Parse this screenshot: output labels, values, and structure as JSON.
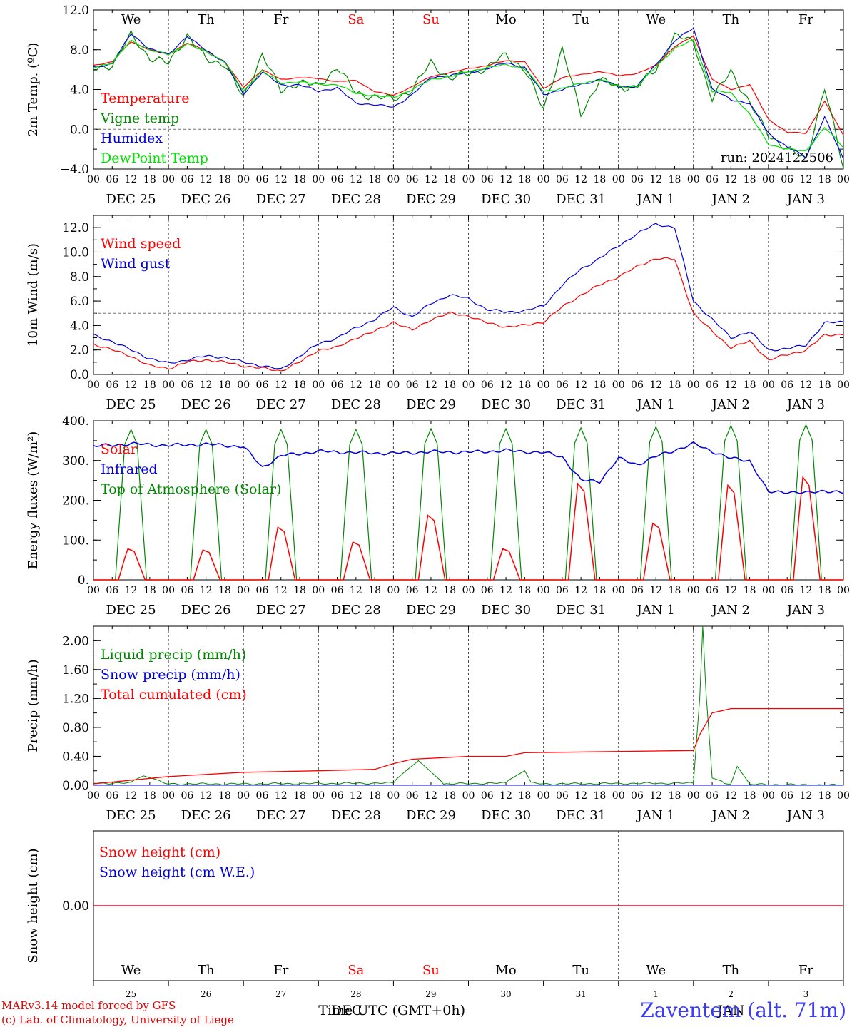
{
  "colors": {
    "red": "#ff0000",
    "green": "#008800",
    "blue": "#0000dd",
    "lightgreen": "#00e000",
    "axis": "#000000",
    "weekend": "#ff0000"
  },
  "day_labels": [
    "We",
    "Th",
    "Fr",
    "Sa",
    "Su",
    "Mo",
    "Tu",
    "We",
    "Th",
    "Fr"
  ],
  "weekend_days": [
    "Sa",
    "Su"
  ],
  "hour_ticks": [
    "00",
    "06",
    "12",
    "18"
  ],
  "date_labels": [
    "DEC 25",
    "DEC 26",
    "DEC 27",
    "DEC 28",
    "DEC 29",
    "DEC 30",
    "DEC 31",
    "JAN 1",
    "JAN 2",
    "JAN 3"
  ],
  "bottom_day_numbers": [
    "25",
    "26",
    "27",
    "28",
    "29",
    "30",
    "31",
    "1",
    "2",
    "3"
  ],
  "run_label": "run: 2024122506",
  "xlabel": "Time UTC (GMT+0h)",
  "bottom_month_left": "DEC",
  "bottom_month_right": "JAN",
  "station": "Zaventem (alt. 71m)",
  "credit_line1": "MARv3.14 model forced by GFS",
  "credit_line2": "(c) Lab. of Climatology, University of Liege",
  "chart_data": [
    {
      "type": "line",
      "ylabel": "2m Temp. (ºC)",
      "ylim": [
        -4,
        12
      ],
      "yticks": [
        "12.0",
        "8.0",
        "4.0",
        "0.0",
        "−4.0"
      ],
      "ytick_values": [
        12,
        8,
        4,
        0,
        -4
      ],
      "dashed_reference": 0,
      "x_hours": [
        0,
        6,
        12,
        18,
        24,
        30,
        36,
        42,
        48,
        54,
        60,
        66,
        72,
        78,
        84,
        90,
        96,
        102,
        108,
        114,
        120,
        126,
        132,
        138,
        144,
        150,
        156,
        162,
        168,
        174,
        180,
        186,
        192,
        198,
        204,
        210,
        216,
        222,
        228,
        234,
        240
      ],
      "series": [
        {
          "name": "Temperature",
          "color": "red",
          "values": [
            6.4,
            6.8,
            8.8,
            8.0,
            7.5,
            8.7,
            7.9,
            6.8,
            4.2,
            6.0,
            5.0,
            5.2,
            5.1,
            4.8,
            4.9,
            3.8,
            3.4,
            4.3,
            5.3,
            5.7,
            6.1,
            6.4,
            6.9,
            6.8,
            4.1,
            5.2,
            5.5,
            5.8,
            5.4,
            5.6,
            6.4,
            8.3,
            9.4,
            5.0,
            4.0,
            4.5,
            1.0,
            -0.3,
            -0.4,
            2.8,
            -0.6
          ]
        },
        {
          "name": "Vigne temp",
          "color": "green",
          "values": [
            6.0,
            6.5,
            9.5,
            7.2,
            6.6,
            9.5,
            7.0,
            6.6,
            3.1,
            7.6,
            3.8,
            4.8,
            4.3,
            6.3,
            3.6,
            3.3,
            3.0,
            4.0,
            6.7,
            5.1,
            5.6,
            6.2,
            7.5,
            6.0,
            2.0,
            8.1,
            1.5,
            5.0,
            4.2,
            4.3,
            6.0,
            9.4,
            8.8,
            3.0,
            5.9,
            2.6,
            -0.5,
            -2.0,
            -3.0,
            4.1,
            -3.8
          ]
        },
        {
          "name": "Humidex",
          "color": "blue",
          "values": [
            6.2,
            6.6,
            9.6,
            8.1,
            7.5,
            9.4,
            7.9,
            6.8,
            3.5,
            5.8,
            4.4,
            4.5,
            3.8,
            4.2,
            2.6,
            2.5,
            2.2,
            3.5,
            5.2,
            5.4,
            5.7,
            6.1,
            6.7,
            6.2,
            3.5,
            4.0,
            4.5,
            5.0,
            4.3,
            4.3,
            6.5,
            8.9,
            10.2,
            4.0,
            3.0,
            2.6,
            -0.4,
            -1.8,
            -2.8,
            1.2,
            -3.0
          ]
        },
        {
          "name": "DewPoint Temp",
          "color": "lightgreen",
          "values": [
            6.2,
            6.7,
            8.9,
            8.0,
            7.5,
            8.6,
            7.8,
            6.8,
            3.8,
            5.9,
            4.6,
            4.8,
            4.5,
            4.5,
            3.6,
            3.4,
            3.2,
            4.0,
            5.0,
            5.3,
            5.8,
            6.2,
            6.5,
            6.1,
            3.8,
            4.1,
            4.6,
            5.0,
            4.3,
            4.3,
            6.3,
            8.1,
            9.0,
            3.8,
            3.7,
            1.5,
            -1.5,
            -2.0,
            -2.2,
            0.2,
            -1.8
          ]
        }
      ]
    },
    {
      "type": "line",
      "ylabel": "10m Wind (m/s)",
      "ylim": [
        0,
        13
      ],
      "yticks": [
        "12.0",
        "10.0",
        "8.0",
        "6.0",
        "4.0",
        "2.0",
        "0.0"
      ],
      "ytick_values": [
        12,
        10,
        8,
        6,
        4,
        2,
        0
      ],
      "dashed_reference": 5,
      "x_hours": [
        0,
        6,
        12,
        18,
        24,
        30,
        36,
        42,
        48,
        54,
        60,
        66,
        72,
        78,
        84,
        90,
        96,
        102,
        108,
        114,
        120,
        126,
        132,
        138,
        144,
        150,
        156,
        162,
        168,
        174,
        180,
        186,
        192,
        198,
        204,
        210,
        216,
        222,
        228,
        234,
        240
      ],
      "series": [
        {
          "name": "Wind speed",
          "color": "red",
          "values": [
            2.5,
            2.0,
            1.5,
            0.7,
            0.5,
            1.0,
            1.2,
            1.0,
            0.7,
            0.5,
            0.3,
            1.0,
            2.0,
            2.2,
            3.0,
            3.5,
            4.3,
            3.6,
            4.5,
            5.0,
            4.8,
            4.2,
            3.9,
            4.0,
            4.3,
            5.5,
            6.5,
            7.3,
            8.0,
            8.8,
            9.5,
            9.4,
            5.0,
            3.5,
            2.2,
            2.7,
            1.2,
            1.6,
            2.0,
            3.2,
            3.3
          ]
        },
        {
          "name": "Wind gust",
          "color": "blue",
          "values": [
            3.2,
            2.7,
            2.0,
            1.3,
            0.9,
            1.2,
            1.5,
            1.4,
            1.0,
            0.7,
            0.4,
            1.5,
            2.5,
            3.0,
            3.8,
            4.5,
            5.5,
            4.7,
            5.8,
            6.5,
            6.2,
            5.3,
            5.1,
            5.2,
            5.6,
            7.3,
            8.6,
            9.5,
            10.5,
            11.5,
            12.3,
            12.0,
            6.0,
            4.5,
            3.0,
            3.5,
            2.0,
            2.1,
            2.4,
            4.2,
            4.3
          ]
        }
      ]
    },
    {
      "type": "line",
      "ylabel": "Energy fluxes (W/m²)",
      "ylim": [
        0,
        400
      ],
      "yticks": [
        "400.",
        "300.",
        "200.",
        "100.",
        "0."
      ],
      "ytick_values": [
        400,
        300,
        200,
        100,
        0
      ],
      "series": [
        {
          "name": "Solar",
          "color": "red",
          "daily_peaks": [
            78,
            75,
            132,
            95,
            162,
            78,
            242,
            142,
            238,
            258
          ]
        },
        {
          "name": "Infrared",
          "color": "blue",
          "x_hours": [
            0,
            12,
            24,
            36,
            48,
            54,
            60,
            72,
            84,
            96,
            108,
            120,
            132,
            144,
            150,
            156,
            162,
            168,
            174,
            180,
            192,
            204,
            210,
            216,
            222,
            228,
            234,
            240
          ],
          "values": [
            336,
            342,
            338,
            341,
            335,
            283,
            312,
            323,
            320,
            318,
            322,
            321,
            325,
            320,
            310,
            250,
            248,
            305,
            290,
            310,
            342,
            305,
            300,
            220,
            222,
            218,
            225,
            218
          ]
        },
        {
          "name": "Top of Atmosphere (Solar)",
          "color": "green",
          "daily_peaks": [
            378,
            378,
            378,
            378,
            380,
            380,
            382,
            385,
            388,
            390
          ]
        }
      ]
    },
    {
      "type": "line",
      "ylabel": "Precip (mm/h)",
      "ylim": [
        0,
        2.2
      ],
      "yticks": [
        "2.00",
        "1.60",
        "1.20",
        "0.80",
        "0.40",
        "0.00"
      ],
      "ytick_values": [
        2,
        1.6,
        1.2,
        0.8,
        0.4,
        0
      ],
      "series": [
        {
          "name": "Liquid precip (mm/h)",
          "color": "green",
          "x_hours": [
            0,
            12,
            16,
            24,
            48,
            96,
            100,
            104,
            112,
            132,
            138,
            140,
            144,
            192,
            194,
            195,
            196,
            198,
            204,
            206,
            210,
            240
          ],
          "values": [
            0.05,
            0.05,
            0.13,
            0.03,
            0.03,
            0.05,
            0.2,
            0.34,
            0.03,
            0.05,
            0.2,
            0.05,
            0.03,
            0.05,
            1.2,
            2.2,
            1.3,
            0.1,
            0.02,
            0.26,
            0.02,
            0.0
          ]
        },
        {
          "name": "Snow precip (mm/h)",
          "color": "blue",
          "values": [
            0.0
          ]
        },
        {
          "name": "Total cumulated (cm)",
          "color": "red",
          "x_hours": [
            0,
            24,
            48,
            72,
            90,
            96,
            102,
            120,
            132,
            138,
            192,
            194,
            198,
            204,
            240
          ],
          "values": [
            0.02,
            0.12,
            0.18,
            0.2,
            0.22,
            0.3,
            0.36,
            0.4,
            0.4,
            0.45,
            0.48,
            0.7,
            1.0,
            1.06,
            1.06
          ]
        }
      ]
    },
    {
      "type": "line",
      "ylabel": "Snow height (cm)",
      "ylim": [
        -1,
        1
      ],
      "yticks": [
        "0.00"
      ],
      "ytick_values": [
        0
      ],
      "series": [
        {
          "name": "Snow height (cm)",
          "color": "red",
          "values": [
            0.0
          ]
        },
        {
          "name": "Snow height (cm W.E.)",
          "color": "blue",
          "values": [
            0.0
          ]
        }
      ]
    }
  ]
}
